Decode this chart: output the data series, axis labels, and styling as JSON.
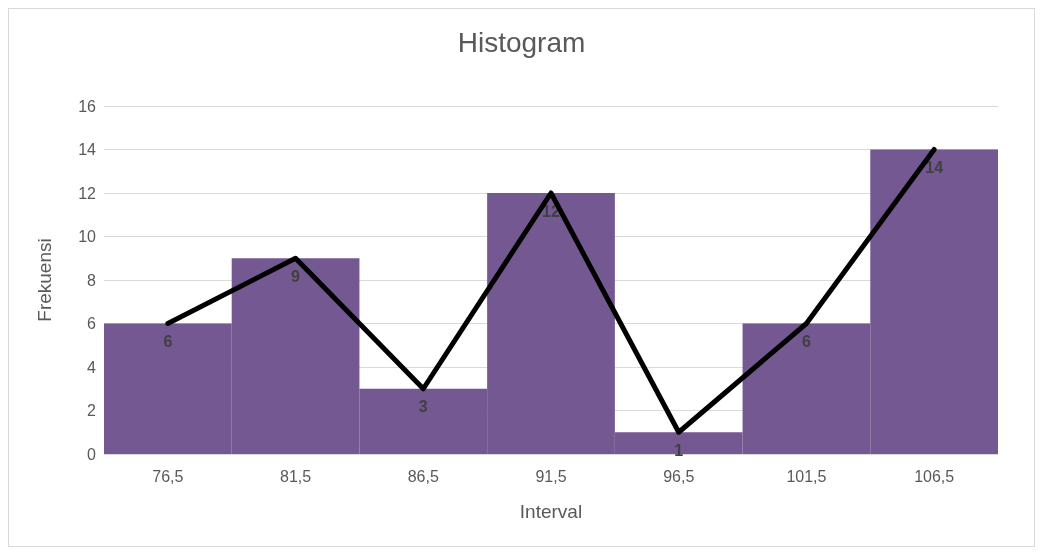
{
  "chart_data": {
    "type": "bar",
    "title": "Histogram",
    "xlabel": "Interval",
    "ylabel": "Frekuensi",
    "categories": [
      "76,5",
      "81,5",
      "86,5",
      "91,5",
      "96,5",
      "101,5",
      "106,5"
    ],
    "series": [
      {
        "color": "#735891",
        "values": [
          6,
          9,
          3,
          12,
          1,
          6,
          14
        ],
        "value_labels": [
          "6",
          "9",
          "3",
          "12",
          "1",
          "6",
          "14"
        ]
      },
      {
        "type": "line",
        "color": "#000000",
        "values": [
          6,
          9,
          3,
          12,
          1,
          6,
          14
        ]
      }
    ],
    "ylim": [
      0,
      16
    ],
    "yticks": [
      0,
      2,
      4,
      6,
      8,
      10,
      12,
      14,
      16
    ],
    "grid": "y",
    "marker": "none",
    "line_style": "solid"
  }
}
